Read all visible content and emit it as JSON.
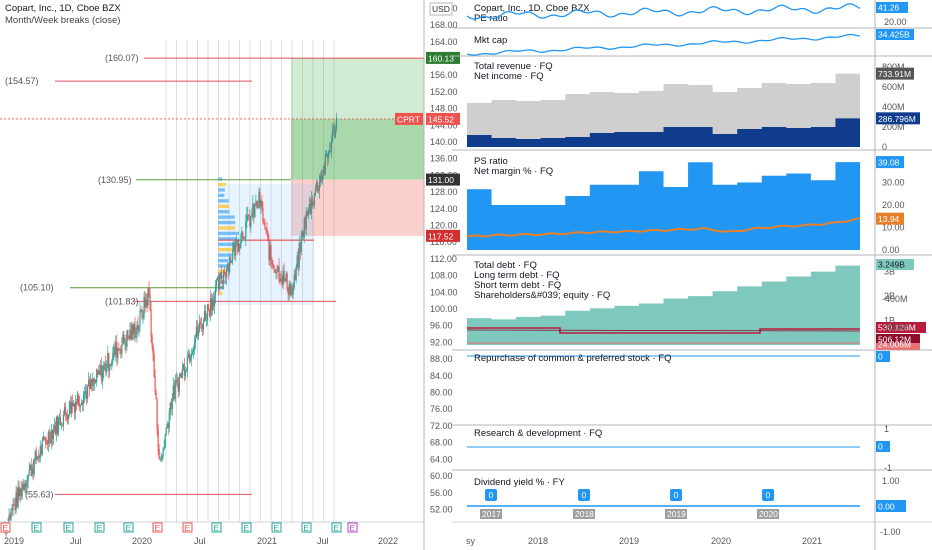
{
  "header": {
    "title": "Copart, Inc., 1D, Cboe BZX",
    "subtitle": "Month/Week breaks (close)",
    "currency": "USD",
    "ticker_tag": "CPRT"
  },
  "colors": {
    "up": "#26a69a",
    "down": "#ef5350",
    "level": "#e0525a",
    "level_green": "#5b9c3f",
    "blue": "#2196f3",
    "navy": "#0f3c8c",
    "gray_area": "#cfcfcf",
    "teal": "#7fc8bd",
    "orange": "#e8802a",
    "crimson": "#b71c3c"
  },
  "chart_data": [
    {
      "type": "candlestick",
      "title": "Copart, Inc., 1D, Cboe BZX",
      "ylabel": "USD",
      "y_ticks": [
        52,
        56,
        60,
        64,
        68,
        72,
        76,
        80,
        84,
        88,
        92,
        96,
        100,
        104,
        108,
        112,
        116,
        120,
        124,
        128,
        132,
        136,
        140,
        144,
        148,
        152,
        156,
        160,
        164,
        168,
        172
      ],
      "ylim": [
        49,
        174
      ],
      "x_ticks": [
        "2019",
        "Jul",
        "2020",
        "Jul",
        "2021",
        "Jul",
        "2022"
      ],
      "price_path": [
        {
          "date": "2019-01",
          "close": 48
        },
        {
          "date": "2019-03",
          "close": 60
        },
        {
          "date": "2019-05",
          "close": 70
        },
        {
          "date": "2019-07",
          "close": 77
        },
        {
          "date": "2019-09",
          "close": 82
        },
        {
          "date": "2019-11",
          "close": 90
        },
        {
          "date": "2020-01",
          "close": 96
        },
        {
          "date": "2020-02",
          "close": 104
        },
        {
          "date": "2020-03",
          "close": 62
        },
        {
          "date": "2020-04",
          "close": 78
        },
        {
          "date": "2020-06",
          "close": 92
        },
        {
          "date": "2020-08",
          "close": 104
        },
        {
          "date": "2020-10",
          "close": 116
        },
        {
          "date": "2020-12",
          "close": 126
        },
        {
          "date": "2021-01",
          "close": 112
        },
        {
          "date": "2021-03",
          "close": 104
        },
        {
          "date": "2021-04",
          "close": 120
        },
        {
          "date": "2021-05",
          "close": 128
        },
        {
          "date": "2021-06",
          "close": 135
        },
        {
          "date": "2021-07",
          "close": 145.52
        }
      ],
      "levels": [
        {
          "label": "(160.07)",
          "value": 160.07
        },
        {
          "label": "(154.57)",
          "value": 154.57
        },
        {
          "label": "(130.95)",
          "value": 130.95
        },
        {
          "label": "(105.10)",
          "value": 105.1
        },
        {
          "label": "(101.83)",
          "value": 101.83
        },
        {
          "label": "(55.63)",
          "value": 55.63
        }
      ],
      "price_tags": [
        {
          "label": "160.13",
          "value": 160.13
        },
        {
          "label": "145.52",
          "value": 145.52
        },
        {
          "label": "131.00",
          "value": 131.0
        },
        {
          "label": "117.52",
          "value": 117.52
        }
      ],
      "risk_reward": {
        "entry": 131.0,
        "target": 160.13,
        "stop": 117.52,
        "last": 145.52
      },
      "earnings_markers": [
        "E",
        "E",
        "E",
        "E",
        "E",
        "E",
        "E",
        "E",
        "E",
        "E",
        "E",
        "E",
        "E"
      ]
    },
    {
      "type": "fundamentals",
      "x_ticks": [
        "sy",
        "2018",
        "2019",
        "2020",
        "2021"
      ],
      "panels": [
        {
          "labels": [
            "PE ratio"
          ],
          "y_ticks": [
            "40.00",
            "20.00"
          ],
          "series": [
            {
              "name": "PE ratio",
              "type": "line",
              "last": 41.26,
              "last_label": "41.26"
            }
          ]
        },
        {
          "labels": [
            "Mkt cap"
          ],
          "series": [
            {
              "name": "Mkt cap",
              "type": "line",
              "last": 34.425,
              "last_label": "34.425B"
            }
          ]
        },
        {
          "labels": [
            "Total revenue · FQ",
            "Net income · FQ"
          ],
          "y_ticks": [
            "800M",
            "600M",
            "400M",
            "200M",
            "0"
          ],
          "series": [
            {
              "name": "Total revenue · FQ",
              "type": "step-area",
              "values": [
                440,
                470,
                460,
                470,
                530,
                550,
                540,
                560,
                630,
                620,
                550,
                590,
                640,
                630,
                640,
                733.91
              ],
              "last_label": "733.91M"
            },
            {
              "name": "Net income · FQ",
              "type": "step-area",
              "values": [
                120,
                90,
                80,
                90,
                100,
                140,
                150,
                150,
                200,
                200,
                130,
                180,
                200,
                190,
                200,
                286.796
              ],
              "last_label": "286.796M"
            }
          ]
        },
        {
          "labels": [
            "PS ratio",
            "Net margin % · FQ"
          ],
          "y_ticks": [
            "30.00",
            "20.00",
            "10.00",
            "0.00"
          ],
          "series": [
            {
              "name": "PS ratio",
              "type": "step-area",
              "values": [
                27,
                20,
                20,
                20,
                24,
                29,
                29,
                35,
                28,
                39,
                29,
                30,
                33,
                34,
                31,
                39.08
              ],
              "last_label": "39.08"
            },
            {
              "name": "Net margin % · FQ",
              "type": "line",
              "values": [
                6,
                6.5,
                6.8,
                7,
                7.5,
                8,
                8.2,
                8.6,
                9,
                9.5,
                8,
                9.5,
                10.5,
                11,
                12,
                13.94
              ],
              "last_label": "13.94"
            }
          ]
        },
        {
          "labels": [
            "Total debt · FQ",
            "Long term debt · FQ",
            "Short term debt · FQ",
            "Shareholders&#039; equity · FQ"
          ],
          "y_ticks": [
            "3B",
            "2B",
            "1B"
          ],
          "series": [
            {
              "name": "Shareholders&#039; equity · FQ",
              "type": "step-area",
              "values": [
                1.1,
                1.05,
                1.15,
                1.2,
                1.4,
                1.5,
                1.6,
                1.7,
                1.9,
                2.0,
                2.2,
                2.4,
                2.6,
                2.8,
                3.0,
                3.249
              ],
              "last_label": "3.249B"
            },
            {
              "name": "Total debt · FQ",
              "type": "line",
              "last_label": "530.126M"
            },
            {
              "name": "Long term debt · FQ",
              "type": "line",
              "last_label": "506.12M"
            },
            {
              "name": "Short term debt · FQ",
              "type": "line",
              "last_label": "24.006M"
            }
          ]
        },
        {
          "labels": [
            "Repurchase of common & preferred stock · FQ"
          ],
          "y_ticks": [
            "-200M",
            "-400M"
          ],
          "series": [
            {
              "name": "Repurchase of common & preferred stock · FQ",
              "type": "bar",
              "values": [
                0,
                0,
                0,
                0,
                0,
                0,
                0,
                -390,
                0,
                0,
                0,
                0,
                0,
                0,
                0,
                0
              ],
              "last_label": "0"
            }
          ]
        },
        {
          "labels": [
            "Research & development · FQ"
          ],
          "y_ticks": [
            "1",
            "0",
            "-1"
          ],
          "series": [
            {
              "name": "Research & development · FQ",
              "type": "line",
              "last_label": "0"
            }
          ]
        },
        {
          "labels": [
            "Dividend yield % · FY"
          ],
          "y_ticks": [
            "1.00",
            "0.00",
            "-1.00"
          ],
          "series": [
            {
              "name": "Dividend yield % · FY",
              "type": "line",
              "last_label": "0.00"
            }
          ],
          "markers": [
            {
              "year": "2017",
              "value": "0"
            },
            {
              "year": "2018",
              "value": "0"
            },
            {
              "year": "2019",
              "value": "0"
            },
            {
              "year": "2020",
              "value": "0"
            }
          ]
        }
      ]
    }
  ]
}
